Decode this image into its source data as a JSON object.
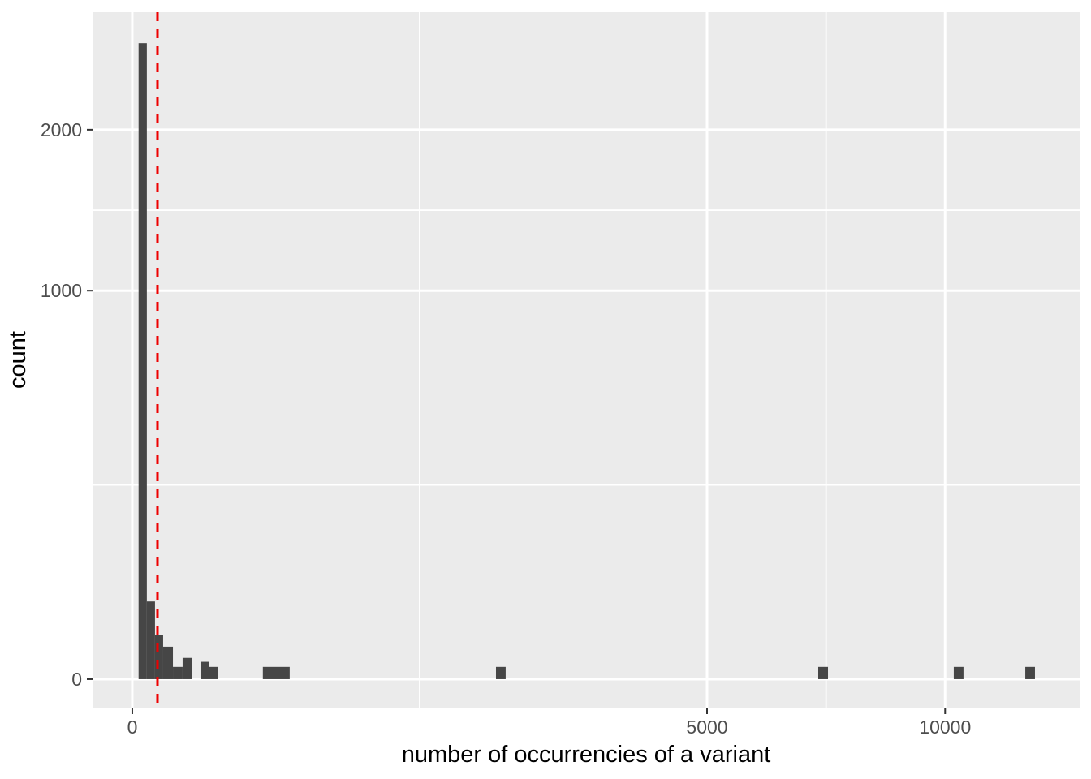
{
  "chart_data": {
    "type": "histogram",
    "title": "",
    "xlabel": "number of occurrencies of a variant",
    "ylabel": "count",
    "legend_position": "none",
    "grid": "on",
    "x_axis": {
      "transform": "sqrt",
      "breaks": [
        0,
        5000,
        10000
      ],
      "tick_labels": [
        "0",
        "5000",
        "10000"
      ],
      "minor_breaks": [
        1250,
        7286
      ],
      "range_sqrt": [
        -4.89,
        116.55
      ]
    },
    "y_axis": {
      "transform": "sqrt",
      "breaks": [
        0,
        1000,
        2000
      ],
      "tick_labels": [
        "0",
        "1000",
        "2000"
      ],
      "minor_breaks": [
        250,
        1457
      ],
      "range_sqrt": [
        -2.38,
        54.29
      ]
    },
    "bars": [
      {
        "from": 0.6,
        "to": 3.2,
        "count": 2680
      },
      {
        "from": 3.2,
        "to": 7.8,
        "count": 40
      },
      {
        "from": 7.8,
        "to": 14.4,
        "count": 13
      },
      {
        "from": 14.4,
        "to": 25,
        "count": 7
      },
      {
        "from": 25,
        "to": 38.3,
        "count": 1
      },
      {
        "from": 38.3,
        "to": 53.2,
        "count": 3
      },
      {
        "from": 70.4,
        "to": 90,
        "count": 2
      },
      {
        "from": 90,
        "to": 112,
        "count": 1
      },
      {
        "from": 258,
        "to": 375,
        "count": 1
      },
      {
        "from": 2002,
        "to": 2110,
        "count": 1
      },
      {
        "from": 7122,
        "to": 7326,
        "count": 1
      },
      {
        "from": 10214,
        "to": 10457,
        "count": 1
      },
      {
        "from": 12070,
        "to": 12333,
        "count": 1
      }
    ],
    "reference_line": {
      "x": 9.6,
      "orientation": "vertical",
      "style": "dashed",
      "color": "#EE0000"
    },
    "colors": {
      "bar": "#464646",
      "panel_background": "#EBEBEB",
      "gridline": "#FFFFFF",
      "tick_text": "#4D4D4D",
      "tick_mark": "#333333",
      "axis_title": "#000000",
      "outer_background": "#FFFFFF"
    }
  }
}
